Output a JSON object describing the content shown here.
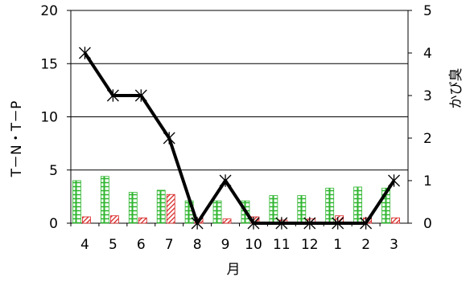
{
  "chart_data": {
    "type": "bar+line",
    "categories": [
      "4",
      "5",
      "6",
      "7",
      "8",
      "9",
      "10",
      "11",
      "12",
      "1",
      "2",
      "3"
    ],
    "xlabel": "月",
    "ylabel_left": "T－N・T－P",
    "ylabel_right": "かび臭",
    "ylim_left": [
      0,
      20
    ],
    "yticks_left": [
      0,
      5,
      10,
      15,
      20
    ],
    "ylim_right": [
      0,
      5
    ],
    "yticks_right": [
      0,
      1,
      2,
      3,
      4,
      5
    ],
    "gridlines_left": [
      5,
      10,
      15
    ],
    "series": [
      {
        "kind": "bar",
        "axis": "left",
        "color": "#2db52d",
        "pattern": "green-grid",
        "values": [
          4.0,
          4.4,
          2.9,
          3.1,
          2.1,
          2.1,
          2.1,
          2.6,
          2.6,
          3.3,
          3.4,
          3.3
        ]
      },
      {
        "kind": "bar",
        "axis": "left",
        "color": "#d62020",
        "pattern": "red-hatch",
        "values": [
          0.6,
          0.7,
          0.5,
          2.7,
          0.4,
          0.4,
          0.6,
          0.3,
          0.4,
          0.7,
          0.5,
          0.5
        ]
      },
      {
        "kind": "line",
        "axis": "right",
        "color": "#000000",
        "marker": "star",
        "values": [
          4,
          3,
          3,
          2,
          0,
          1,
          0,
          0,
          0,
          0,
          0,
          1
        ]
      }
    ]
  }
}
